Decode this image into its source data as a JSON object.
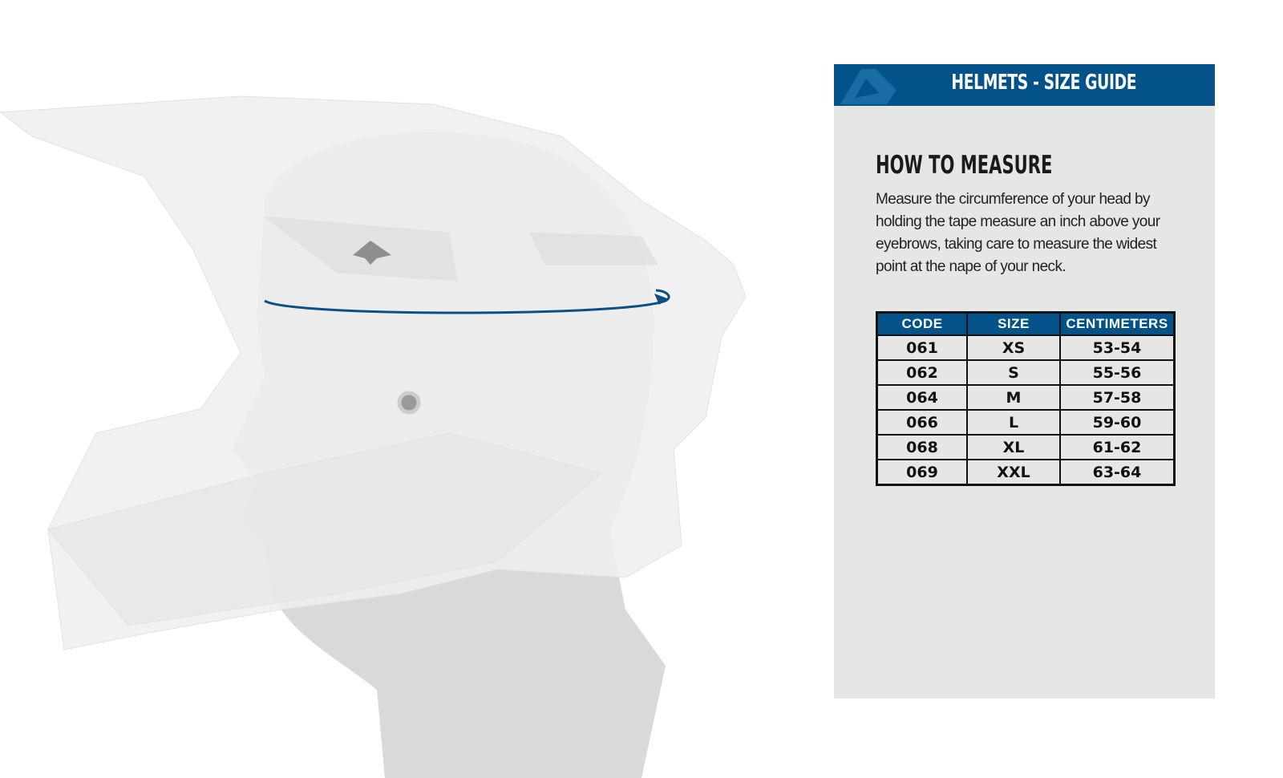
{
  "banner": {
    "title": "HELMETS - SIZE GUIDE",
    "logo": "brand-logo"
  },
  "measure": {
    "title": "HOW TO MEASURE",
    "text": "Measure the circumference of your head by holding the tape measure an inch above your eyebrows, taking care to measure the widest point at the nape of your neck."
  },
  "table": {
    "headers": [
      "CODE",
      "SIZE",
      "CENTIMETERS"
    ],
    "rows": [
      [
        "061",
        "XS",
        "53-54"
      ],
      [
        "062",
        "S",
        "55-56"
      ],
      [
        "064",
        "M",
        "57-58"
      ],
      [
        "066",
        "L",
        "59-60"
      ],
      [
        "068",
        "XL",
        "61-62"
      ],
      [
        "069",
        "XXL",
        "63-64"
      ]
    ]
  },
  "colors": {
    "brand": "#03538a",
    "panel": "#e6e6e5",
    "tape": "#0a4f86"
  }
}
